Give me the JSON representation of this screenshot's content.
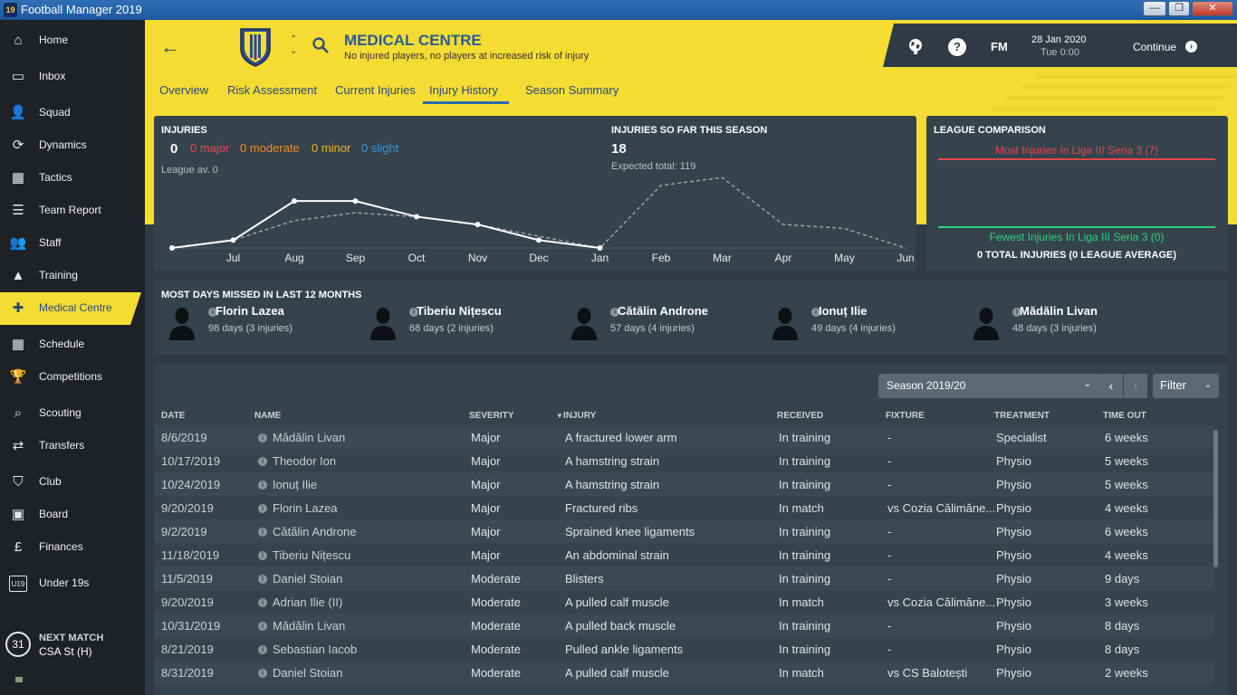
{
  "app": {
    "title": "Football Manager 2019",
    "icon_text": "19"
  },
  "window_buttons": [
    "minimize",
    "maximize",
    "close"
  ],
  "sidebar": {
    "items": [
      {
        "label": "Home",
        "icon": "home-icon",
        "glyph": "⌂"
      },
      {
        "label": "Inbox",
        "icon": "inbox-icon",
        "glyph": "▭"
      },
      {
        "label": "Squad",
        "icon": "squad-icon",
        "glyph": "👤"
      },
      {
        "label": "Dynamics",
        "icon": "dynamics-icon",
        "glyph": "⟳"
      },
      {
        "label": "Tactics",
        "icon": "tactics-icon",
        "glyph": "▦"
      },
      {
        "label": "Team Report",
        "icon": "report-icon",
        "glyph": "☰"
      },
      {
        "label": "Staff",
        "icon": "staff-icon",
        "glyph": "👥"
      },
      {
        "label": "Training",
        "icon": "training-icon",
        "glyph": "▲"
      },
      {
        "label": "Medical Centre",
        "icon": "medical-icon",
        "glyph": "✚",
        "active": true
      },
      {
        "label": "Schedule",
        "icon": "calendar-icon",
        "glyph": "▦"
      },
      {
        "label": "Competitions",
        "icon": "trophy-icon",
        "glyph": "🏆"
      },
      {
        "label": "Scouting",
        "icon": "search-icon",
        "glyph": "⌕"
      },
      {
        "label": "Transfers",
        "icon": "transfer-icon",
        "glyph": "⇄"
      },
      {
        "label": "Club",
        "icon": "shield-icon",
        "glyph": "⛉"
      },
      {
        "label": "Board",
        "icon": "briefcase-icon",
        "glyph": "▣"
      },
      {
        "label": "Finances",
        "icon": "money-icon",
        "glyph": "£"
      },
      {
        "label": "Under 19s",
        "icon": "u19-icon",
        "glyph": "U19"
      }
    ],
    "next_match": {
      "title": "NEXT MATCH",
      "value": "CSA St (H)",
      "day": "31"
    }
  },
  "header": {
    "title": "MEDICAL CENTRE",
    "subtitle": "No injured players, no players at increased risk of injury",
    "tabs": [
      {
        "label": "Overview"
      },
      {
        "label": "Risk Assessment"
      },
      {
        "label": "Current Injuries"
      },
      {
        "label": "Injury History",
        "active": true
      },
      {
        "label": "Season Summary"
      }
    ]
  },
  "topbar": {
    "logo": "FM",
    "help": "?",
    "date": "28 Jan 2020",
    "time": "Tue 0:00",
    "continue_label": "Continue"
  },
  "injuries_panel": {
    "title": "INJURIES",
    "count": "0",
    "major": "0 major",
    "moderate": "0 moderate",
    "minor": "0 minor",
    "slight": "0 slight",
    "league_avg": "League av. 0",
    "season_title": "INJURIES SO FAR THIS SEASON",
    "season_count": "18",
    "expected": "Expected total: 119"
  },
  "chart_data": {
    "type": "line",
    "categories": [
      "",
      "Jul",
      "Aug",
      "Sep",
      "Oct",
      "Nov",
      "Dec",
      "Jan",
      "Feb",
      "Mar",
      "Apr",
      "May",
      "Jun"
    ],
    "series": [
      {
        "values": [
          0,
          1,
          6,
          6,
          4,
          3,
          1,
          0,
          null,
          null,
          null,
          null,
          null
        ],
        "color": "#ffffff",
        "style": "solid"
      },
      {
        "values": [
          0,
          1,
          3.5,
          4.5,
          4,
          3,
          1.5,
          0,
          8,
          9,
          3,
          2.5,
          0
        ],
        "color": "#9aa3a9",
        "style": "dashed"
      }
    ],
    "ylim": [
      0,
      10
    ]
  },
  "league_comparison": {
    "title": "LEAGUE COMPARISON",
    "most": "Most Injuries In Liga III Seria 3 (7)",
    "fewest": "Fewest Injuries In Liga III Seria 3 (0)",
    "total": "0 TOTAL INJURIES (0 LEAGUE AVERAGE)",
    "most_color": "#e8474a",
    "fewest_color": "#2fd27a"
  },
  "most_days": {
    "title": "MOST DAYS MISSED IN LAST 12 MONTHS",
    "players": [
      {
        "name": "Florin Lazea",
        "days": "98 days (3 injuries)"
      },
      {
        "name": "Tiberiu Nițescu",
        "days": "68 days (2 injuries)"
      },
      {
        "name": "Cătălin Androne",
        "days": "57 days (4 injuries)"
      },
      {
        "name": "Ionuț Ilie",
        "days": "49 days (4 injuries)"
      },
      {
        "name": "Mădălin Livan",
        "days": "48 days (3 injuries)"
      }
    ]
  },
  "table": {
    "season_select": "Season 2019/20",
    "filter_label": "Filter",
    "headers": {
      "date": "DATE",
      "name": "NAME",
      "severity": "SEVERITY",
      "injury": "INJURY",
      "received": "RECEIVED",
      "fixture": "FIXTURE",
      "treatment": "TREATMENT",
      "time_out": "TIME OUT"
    },
    "rows": [
      {
        "date": "8/6/2019",
        "name": "Mădălin Livan",
        "severity": "Major",
        "injury": "A fractured lower arm",
        "received": "In training",
        "fixture": "-",
        "treatment": "Specialist",
        "time_out": "6 weeks"
      },
      {
        "date": "10/17/2019",
        "name": "Theodor Ion",
        "severity": "Major",
        "injury": "A hamstring strain",
        "received": "In training",
        "fixture": "-",
        "treatment": "Physio",
        "time_out": "5 weeks"
      },
      {
        "date": "10/24/2019",
        "name": "Ionuț Ilie",
        "severity": "Major",
        "injury": "A hamstring strain",
        "received": "In training",
        "fixture": "-",
        "treatment": "Physio",
        "time_out": "5 weeks"
      },
      {
        "date": "9/20/2019",
        "name": "Florin Lazea",
        "severity": "Major",
        "injury": "Fractured ribs",
        "received": "In match",
        "fixture": "vs Cozia Călimăne...",
        "treatment": "Physio",
        "time_out": "4 weeks"
      },
      {
        "date": "9/2/2019",
        "name": "Cătălin Androne",
        "severity": "Major",
        "injury": "Sprained knee ligaments",
        "received": "In training",
        "fixture": "-",
        "treatment": "Physio",
        "time_out": "6 weeks"
      },
      {
        "date": "11/18/2019",
        "name": "Tiberiu Nițescu",
        "severity": "Major",
        "injury": "An abdominal strain",
        "received": "In training",
        "fixture": "-",
        "treatment": "Physio",
        "time_out": "4 weeks"
      },
      {
        "date": "11/5/2019",
        "name": "Daniel Stoian",
        "severity": "Moderate",
        "injury": "Blisters",
        "received": "In training",
        "fixture": "-",
        "treatment": "Physio",
        "time_out": "9 days"
      },
      {
        "date": "9/20/2019",
        "name": "Adrian Ilie (II)",
        "severity": "Moderate",
        "injury": "A pulled calf muscle",
        "received": "In match",
        "fixture": "vs Cozia Călimăne...",
        "treatment": "Physio",
        "time_out": "3 weeks"
      },
      {
        "date": "10/31/2019",
        "name": "Mădălin Livan",
        "severity": "Moderate",
        "injury": "A pulled back muscle",
        "received": "In training",
        "fixture": "-",
        "treatment": "Physio",
        "time_out": "8 days"
      },
      {
        "date": "8/21/2019",
        "name": "Sebastian Iacob",
        "severity": "Moderate",
        "injury": "Pulled ankle ligaments",
        "received": "In training",
        "fixture": "-",
        "treatment": "Physio",
        "time_out": "8 days"
      },
      {
        "date": "8/31/2019",
        "name": "Daniel Stoian",
        "severity": "Moderate",
        "injury": "A pulled calf muscle",
        "received": "In match",
        "fixture": "vs CS Balotești",
        "treatment": "Physio",
        "time_out": "2 weeks"
      }
    ]
  }
}
